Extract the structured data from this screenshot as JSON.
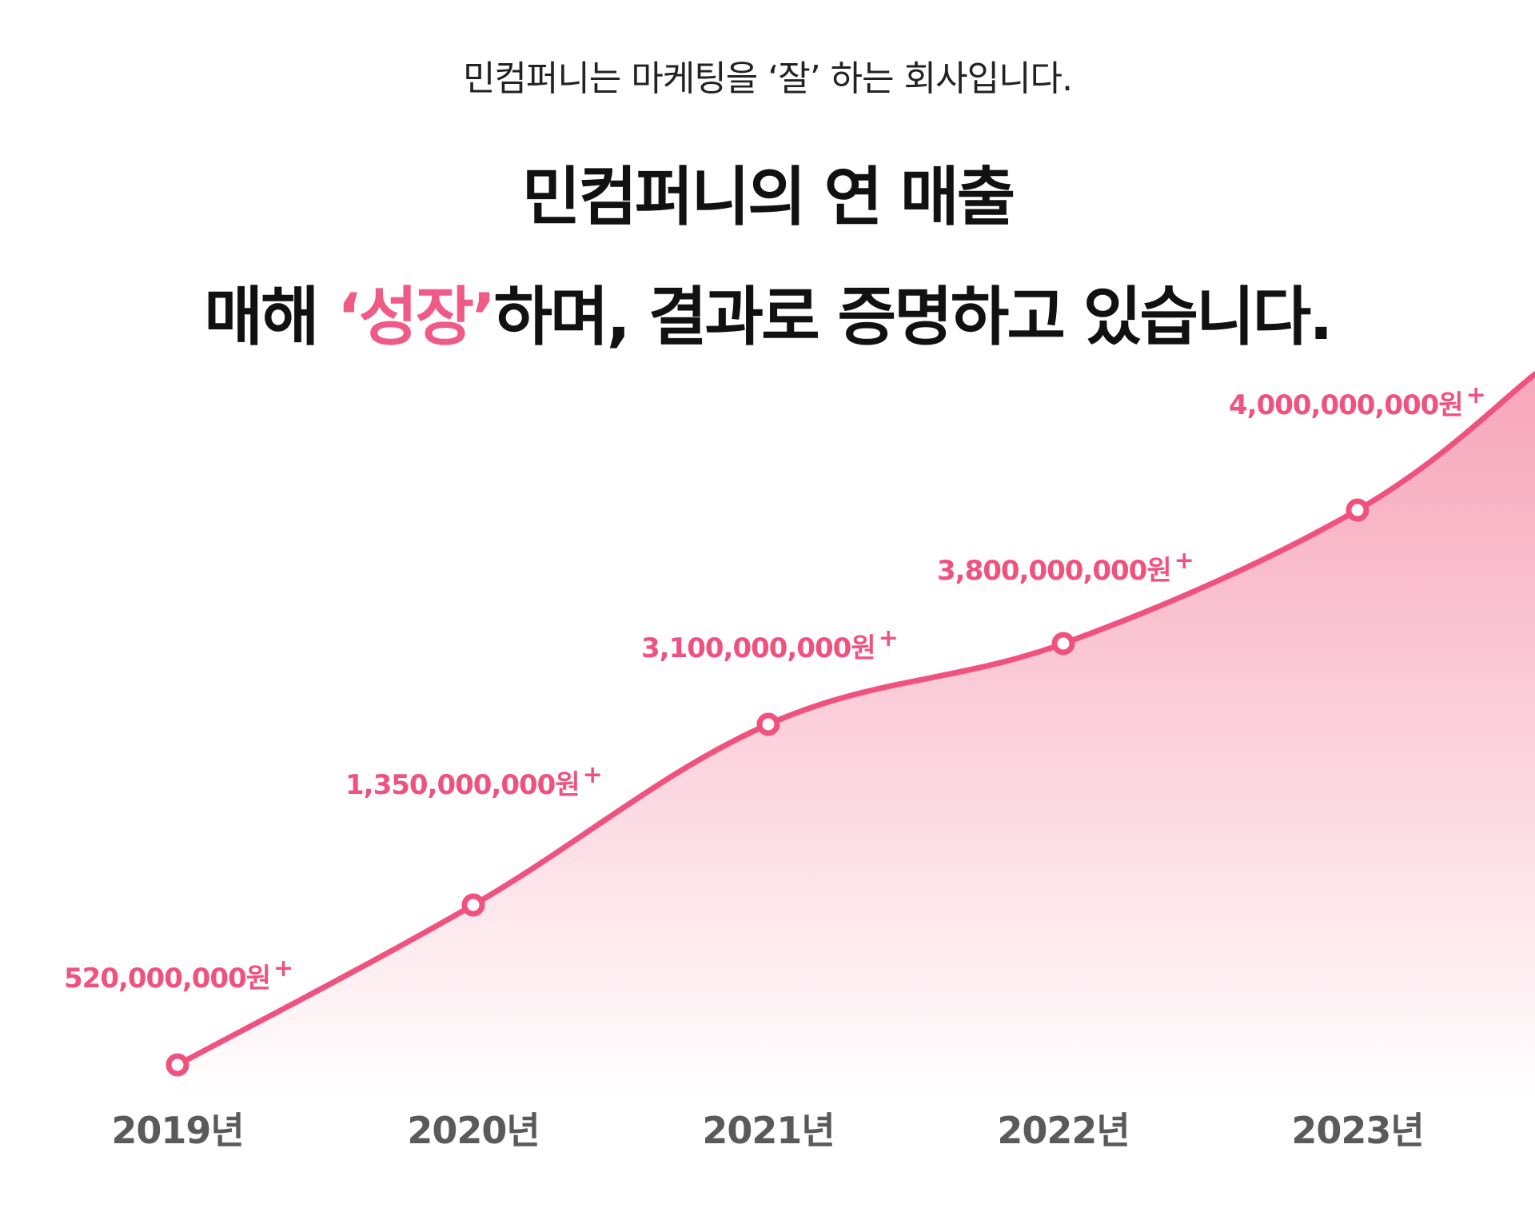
{
  "header": {
    "subtitle": "민컴퍼니는 마케팅을 ‘잘’ 하는 회사입니다.",
    "headline_line1": "민컴퍼니의 연 매출",
    "headline_line2_prefix": "매해 ",
    "headline_line2_accent": "‘성장’",
    "headline_line2_suffix": "하며, 결과로 증명하고 있습니다."
  },
  "colors": {
    "accent": "#f0527f",
    "line": "#f0527f",
    "area_top": "#f7a1b8",
    "area_bottom": "#ffffff",
    "year_label": "#5a5a5a"
  },
  "chart_data": {
    "type": "area",
    "title": "",
    "xlabel": "",
    "ylabel": "",
    "categories": [
      "2019년",
      "2020년",
      "2021년",
      "2022년",
      "2023년"
    ],
    "series": [
      {
        "values": [
          520000000,
          1350000000,
          3100000000,
          3800000000,
          4000000000
        ],
        "value_labels": [
          "520,000,000원",
          "1,350,000,000원",
          "3,100,000,000원",
          "3,800,000,000원",
          "4,000,000,000원"
        ],
        "label_suffix": "+"
      }
    ],
    "grid": false,
    "legend": "none"
  }
}
